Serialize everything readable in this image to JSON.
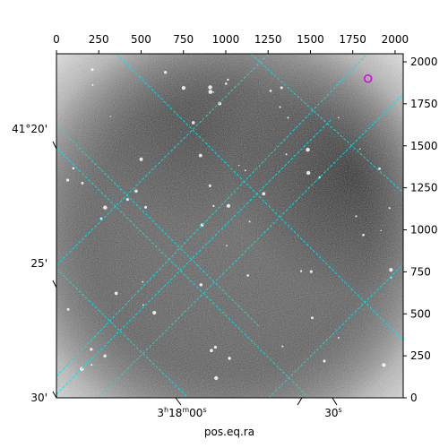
{
  "chart_data": {
    "type": "heatmap",
    "colormap": "grayscale, inverted (dark = bright sky)",
    "grid": true,
    "grid_color": "#00e5e5",
    "marker_color": "#e000e0",
    "marker": {
      "x": 1840,
      "y": 1900
    },
    "top_axis": {
      "range": [
        0,
        2048
      ],
      "ticks": [
        0,
        250,
        500,
        750,
        1000,
        1250,
        1500,
        1750,
        2000
      ]
    },
    "right_axis": {
      "range": [
        0,
        2048
      ],
      "ticks": [
        0,
        250,
        500,
        750,
        1000,
        1250,
        1500,
        1750,
        2000
      ]
    },
    "left_axis": {
      "tick_labels": [
        "41°20'",
        "25'",
        "30'"
      ]
    },
    "bottom_axis": {
      "label": "pos.eq.ra",
      "tick_labels": [
        {
          "h": "3",
          "hsup": "h",
          "m": "18",
          "msup": "m",
          "s": "00",
          "ssup": "s"
        },
        {
          "s": "30",
          "ssup": "s"
        }
      ]
    }
  }
}
